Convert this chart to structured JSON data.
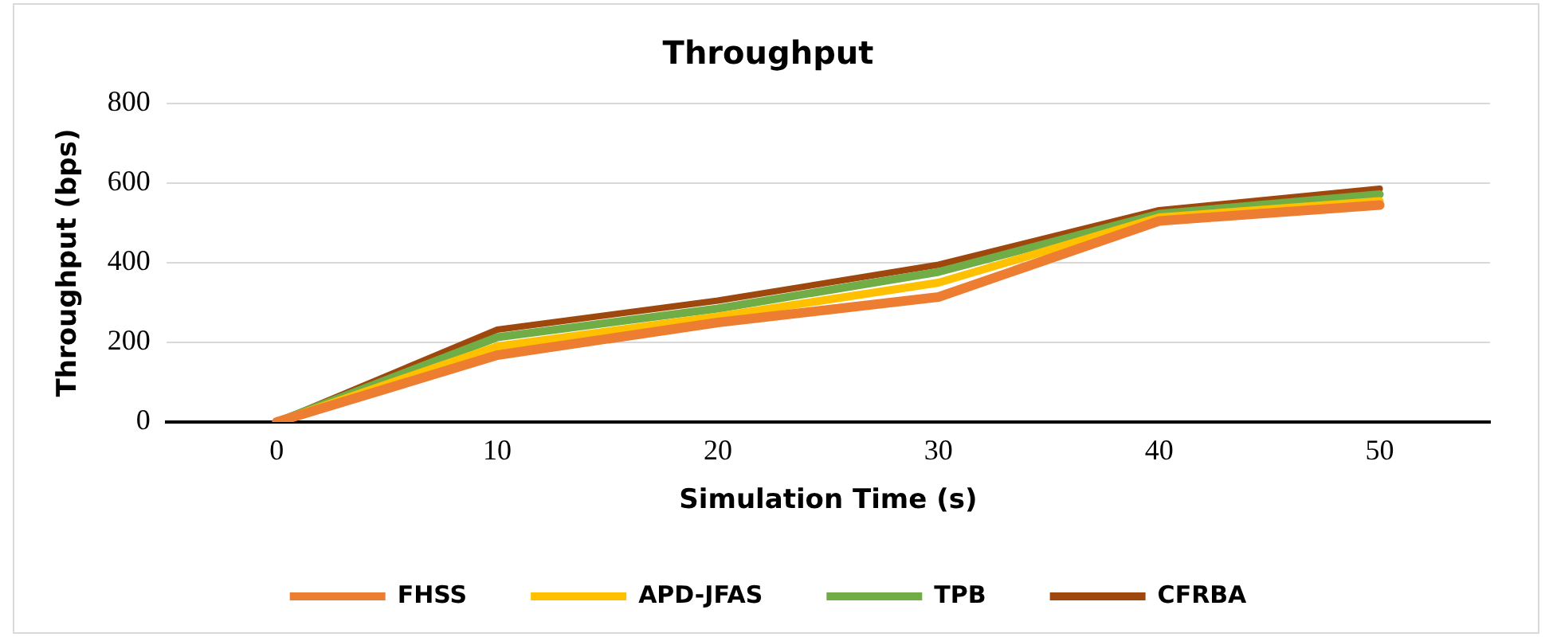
{
  "chart_data": {
    "type": "line",
    "title": "Throughput",
    "xlabel": "Simulation Time (s)",
    "ylabel": "Throughput (bps)",
    "categories": [
      "0",
      "10",
      "20",
      "30",
      "40",
      "50"
    ],
    "series": [
      {
        "name": "FHSS",
        "color": "#ed7d31",
        "values": [
          0,
          168,
          250,
          314,
          505,
          545
        ]
      },
      {
        "name": "APD-JFAS",
        "color": "#ffc000",
        "values": [
          0,
          190,
          265,
          350,
          514,
          555
        ]
      },
      {
        "name": "TPB",
        "color": "#70ad47",
        "values": [
          0,
          213,
          285,
          377,
          523,
          572
        ]
      },
      {
        "name": "CFRBA",
        "color": "#9e480e",
        "values": [
          0,
          232,
          305,
          395,
          532,
          586
        ]
      }
    ],
    "ylim": [
      0,
      800
    ],
    "yticks": [
      0,
      200,
      400,
      600,
      800
    ],
    "grid": "y",
    "legend": "bottom",
    "marker": "none",
    "line_style": "solid"
  }
}
